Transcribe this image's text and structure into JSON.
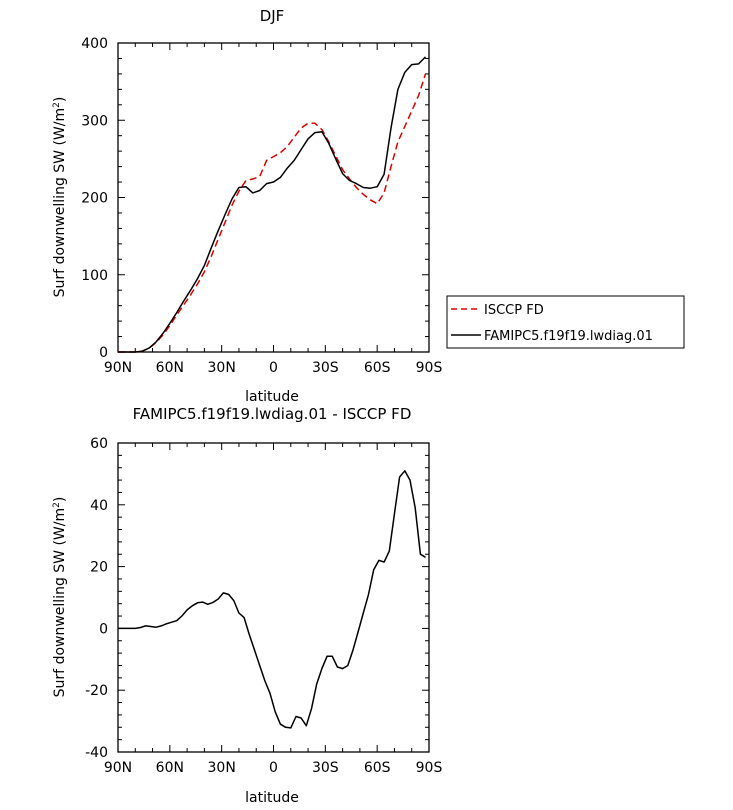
{
  "chart_data": [
    {
      "type": "line",
      "title": "DJF",
      "xlabel": "latitude",
      "ylabel": "Surf downwelling SW (W/m",
      "ylabel_sup": "2",
      "ylabel_close": ")",
      "xlim": [
        90,
        -90
      ],
      "ylim": [
        0,
        400
      ],
      "xticks": [
        {
          "value": 90,
          "label": "90N"
        },
        {
          "value": 60,
          "label": "60N"
        },
        {
          "value": 30,
          "label": "30N"
        },
        {
          "value": 0,
          "label": "0"
        },
        {
          "value": -30,
          "label": "30S"
        },
        {
          "value": -60,
          "label": "60S"
        },
        {
          "value": -90,
          "label": "90S"
        }
      ],
      "yticks": [
        {
          "value": 0,
          "label": "0"
        },
        {
          "value": 100,
          "label": "100"
        },
        {
          "value": 200,
          "label": "200"
        },
        {
          "value": 300,
          "label": "300"
        },
        {
          "value": 400,
          "label": "400"
        }
      ],
      "legend": [
        {
          "label": "ISCCP FD",
          "color": "#e00000",
          "dash": true
        },
        {
          "label": "FAMIPC5.f19f19.lwdiag.01",
          "color": "#000000",
          "dash": false
        }
      ],
      "series": [
        {
          "name": "ISCCP FD",
          "color": "#e00000",
          "dash": true,
          "x": [
            90,
            85,
            80,
            76,
            72,
            68,
            64,
            60,
            56,
            52,
            48,
            44,
            40,
            36,
            32,
            28,
            24,
            20,
            16,
            12,
            8,
            4,
            0,
            -4,
            -8,
            -12,
            -16,
            -20,
            -24,
            -28,
            -32,
            -36,
            -40,
            -44,
            -48,
            -52,
            -56,
            -60,
            -64,
            -68,
            -72,
            -76,
            -80,
            -84,
            -88
          ],
          "y": [
            0,
            0,
            0,
            1,
            5,
            12,
            22,
            34,
            48,
            61,
            74,
            88,
            104,
            124,
            146,
            168,
            190,
            208,
            222,
            224,
            227,
            248,
            253,
            258,
            266,
            278,
            290,
            296,
            296,
            288,
            272,
            254,
            236,
            224,
            213,
            204,
            197,
            192,
            206,
            240,
            272,
            292,
            312,
            332,
            360
          ]
        },
        {
          "name": "FAMIPC5.f19f19.lwdiag.01",
          "color": "#000000",
          "dash": false,
          "x": [
            90,
            85,
            80,
            76,
            72,
            68,
            64,
            60,
            56,
            52,
            48,
            44,
            40,
            36,
            32,
            28,
            24,
            20,
            16,
            12,
            8,
            4,
            0,
            -4,
            -8,
            -12,
            -16,
            -20,
            -24,
            -28,
            -32,
            -36,
            -40,
            -44,
            -48,
            -52,
            -56,
            -60,
            -64,
            -68,
            -72,
            -76,
            -80,
            -84,
            -88
          ],
          "y": [
            0,
            0,
            0,
            1,
            5,
            13,
            24,
            37,
            51,
            66,
            80,
            95,
            112,
            135,
            157,
            178,
            198,
            213,
            214,
            206,
            209,
            218,
            220,
            226,
            238,
            248,
            262,
            276,
            284,
            285,
            270,
            250,
            231,
            222,
            218,
            213,
            212,
            214,
            230,
            290,
            340,
            362,
            372,
            373,
            382
          ]
        }
      ]
    },
    {
      "type": "line",
      "title": "FAMIPC5.f19f19.lwdiag.01 - ISCCP FD",
      "xlabel": "latitude",
      "ylabel": "Surf downwelling SW (W/m",
      "ylabel_sup": "2",
      "ylabel_close": ")",
      "xlim": [
        90,
        -90
      ],
      "ylim": [
        -40,
        60
      ],
      "xticks": [
        {
          "value": 90,
          "label": "90N"
        },
        {
          "value": 60,
          "label": "60N"
        },
        {
          "value": 30,
          "label": "30N"
        },
        {
          "value": 0,
          "label": "0"
        },
        {
          "value": -30,
          "label": "30S"
        },
        {
          "value": -60,
          "label": "60S"
        },
        {
          "value": -90,
          "label": "90S"
        }
      ],
      "yticks": [
        {
          "value": -40,
          "label": "-40"
        },
        {
          "value": -20,
          "label": "-20"
        },
        {
          "value": 0,
          "label": "0"
        },
        {
          "value": 20,
          "label": "20"
        },
        {
          "value": 40,
          "label": "40"
        },
        {
          "value": 60,
          "label": "60"
        }
      ],
      "series": [
        {
          "name": "FAMIPC5.f19f19.lwdiag.01 - ISCCP FD",
          "color": "#000000",
          "dash": false,
          "x": [
            90,
            85,
            80,
            77,
            74,
            71,
            68,
            65,
            62,
            59,
            56,
            53,
            50,
            47,
            44,
            41,
            38,
            35,
            32,
            29,
            26,
            23,
            20,
            17,
            14,
            11,
            8,
            5,
            2,
            -1,
            -4,
            -7,
            -10,
            -13,
            -16,
            -19,
            -22,
            -25,
            -28,
            -31,
            -34,
            -37,
            -40,
            -43,
            -46,
            -49,
            -52,
            -55,
            -58,
            -61,
            -64,
            -67,
            -70,
            -73,
            -76,
            -79,
            -82,
            -85,
            -88
          ],
          "y": [
            0,
            0,
            0,
            0.3,
            0.8,
            0.6,
            0.4,
            0.8,
            1.5,
            2,
            2.5,
            4,
            6,
            7.3,
            8.3,
            8.5,
            7.8,
            8.4,
            9.5,
            11.5,
            11,
            9,
            5,
            3.5,
            -2,
            -7,
            -12,
            -17,
            -21,
            -27,
            -31,
            -32,
            -32.2,
            -28.5,
            -29,
            -31.5,
            -26,
            -18,
            -13,
            -9,
            -9,
            -12.5,
            -13,
            -12,
            -7,
            -1,
            5,
            11,
            19,
            22,
            21.5,
            25,
            37,
            49,
            51,
            48,
            39,
            24,
            23
          ]
        }
      ]
    }
  ]
}
